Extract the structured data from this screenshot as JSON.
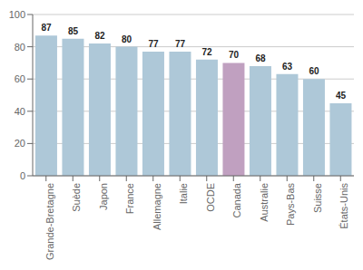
{
  "chart_data": {
    "type": "bar",
    "categories": [
      "Grande-Bretagne",
      "Suède",
      "Japon",
      "France",
      "Allemagne",
      "Italie",
      "OCDE",
      "Canada",
      "Australie",
      "Pays-Bas",
      "Suisse",
      "États-Unis"
    ],
    "values": [
      87,
      85,
      82,
      80,
      77,
      77,
      72,
      70,
      68,
      63,
      60,
      45
    ],
    "colors": [
      "#aec8d8",
      "#aec8d8",
      "#aec8d8",
      "#aec8d8",
      "#aec8d8",
      "#aec8d8",
      "#aec8d8",
      "#c0a0c0",
      "#aec8d8",
      "#aec8d8",
      "#aec8d8",
      "#aec8d8"
    ],
    "ylim": [
      0,
      100
    ],
    "yticks": [
      0,
      20,
      40,
      60,
      80,
      100
    ],
    "grid": true,
    "data_labels": true
  }
}
